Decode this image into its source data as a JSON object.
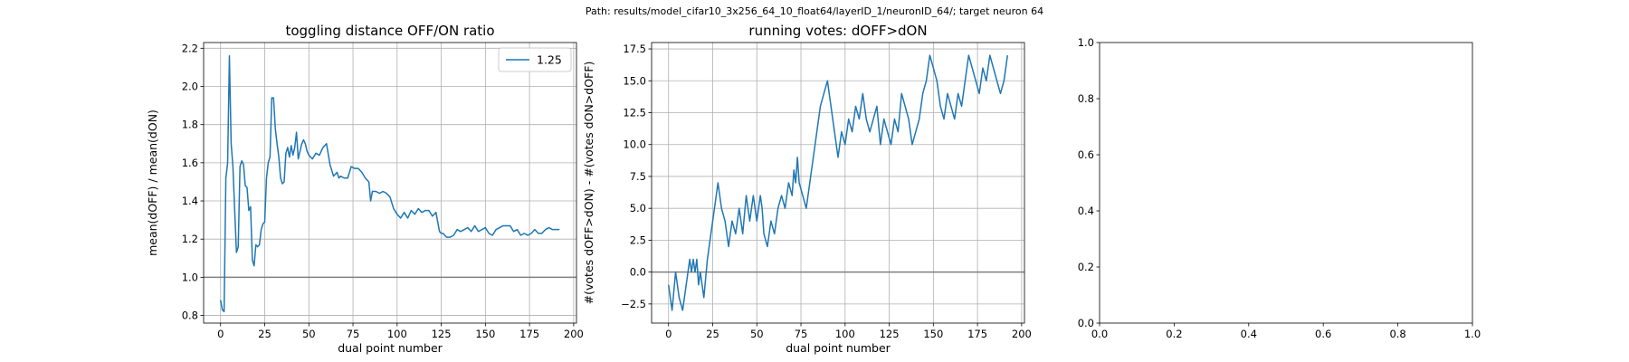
{
  "figure": {
    "suptitle": "Path: results/model_cifar10_3x256_64_10_float64/layerID_1/neuronID_64/; target neuron 64"
  },
  "colors": {
    "line": "#1f77b4",
    "hline": "#7f7f7f",
    "grid": "#b0b0b0"
  },
  "chart_data": [
    {
      "type": "line",
      "title": "toggling distance OFF/ON ratio",
      "xlabel": "dual point number",
      "ylabel": "mean(dOFF) / mean(dON)",
      "xlim": [
        -9.6,
        201.6
      ],
      "ylim": [
        0.76,
        2.23
      ],
      "xticks": [
        0,
        25,
        50,
        75,
        100,
        125,
        150,
        175,
        200
      ],
      "xtick_labels": [
        "0",
        "25",
        "50",
        "75",
        "100",
        "125",
        "150",
        "175",
        "200"
      ],
      "yticks": [
        0.8,
        1.0,
        1.2,
        1.4,
        1.6,
        1.8,
        2.0,
        2.2
      ],
      "ytick_labels": [
        "0.8",
        "1.0",
        "1.2",
        "1.4",
        "1.6",
        "1.8",
        "2.0",
        "2.2"
      ],
      "grid": true,
      "legend": {
        "placement": "upper-right",
        "entries": [
          "1.25"
        ]
      },
      "hline": 1.0,
      "series": [
        {
          "name": "1.25",
          "x": [
            0,
            1,
            2,
            3,
            4,
            5,
            6,
            7,
            8,
            9,
            10,
            11,
            12,
            13,
            14,
            15,
            16,
            17,
            18,
            19,
            20,
            21,
            22,
            23,
            24,
            25,
            26,
            27,
            28,
            29,
            30,
            31,
            32,
            33,
            34,
            35,
            36,
            37,
            38,
            39,
            40,
            41,
            42,
            43,
            44,
            45,
            46,
            47,
            48,
            49,
            50,
            52,
            54,
            56,
            58,
            60,
            62,
            64,
            66,
            67,
            68,
            70,
            72,
            74,
            76,
            78,
            80,
            82,
            84,
            85,
            86,
            88,
            90,
            92,
            94,
            96,
            98,
            100,
            102,
            104,
            106,
            108,
            110,
            112,
            114,
            116,
            118,
            120,
            122,
            124,
            125,
            126,
            128,
            130,
            132,
            134,
            136,
            138,
            140,
            142,
            144,
            146,
            148,
            150,
            152,
            154,
            156,
            158,
            160,
            162,
            164,
            166,
            168,
            170,
            172,
            174,
            176,
            178,
            180,
            182,
            184,
            186,
            188,
            190,
            192
          ],
          "y": [
            0.88,
            0.83,
            0.82,
            1.52,
            1.6,
            2.16,
            1.7,
            1.58,
            1.35,
            1.13,
            1.16,
            1.58,
            1.61,
            1.59,
            1.48,
            1.47,
            1.35,
            1.37,
            1.09,
            1.06,
            1.17,
            1.16,
            1.17,
            1.25,
            1.28,
            1.29,
            1.52,
            1.6,
            1.63,
            1.94,
            1.94,
            1.78,
            1.7,
            1.63,
            1.52,
            1.49,
            1.5,
            1.65,
            1.68,
            1.63,
            1.69,
            1.64,
            1.68,
            1.76,
            1.62,
            1.66,
            1.7,
            1.72,
            1.7,
            1.66,
            1.64,
            1.62,
            1.65,
            1.64,
            1.68,
            1.7,
            1.59,
            1.53,
            1.55,
            1.52,
            1.53,
            1.52,
            1.52,
            1.58,
            1.57,
            1.57,
            1.55,
            1.52,
            1.5,
            1.4,
            1.45,
            1.45,
            1.44,
            1.45,
            1.44,
            1.42,
            1.36,
            1.33,
            1.31,
            1.34,
            1.31,
            1.35,
            1.33,
            1.36,
            1.34,
            1.35,
            1.35,
            1.32,
            1.34,
            1.24,
            1.23,
            1.23,
            1.21,
            1.21,
            1.22,
            1.25,
            1.24,
            1.25,
            1.26,
            1.24,
            1.27,
            1.24,
            1.25,
            1.26,
            1.23,
            1.22,
            1.25,
            1.26,
            1.27,
            1.27,
            1.27,
            1.24,
            1.25,
            1.22,
            1.23,
            1.22,
            1.23,
            1.25,
            1.23,
            1.23,
            1.25,
            1.26,
            1.25,
            1.25,
            1.25
          ]
        }
      ]
    },
    {
      "type": "line",
      "title": "running votes: dOFF>dON",
      "xlabel": "dual point number",
      "ylabel": "#(votes dOFF>dON) - #(votes dON>dOFF)",
      "xlim": [
        -9.6,
        201.6
      ],
      "ylim": [
        -4.0,
        18.0
      ],
      "xticks": [
        0,
        25,
        50,
        75,
        100,
        125,
        150,
        175,
        200
      ],
      "xtick_labels": [
        "0",
        "25",
        "50",
        "75",
        "100",
        "125",
        "150",
        "175",
        "200"
      ],
      "yticks": [
        -2.5,
        0.0,
        2.5,
        5.0,
        7.5,
        10.0,
        12.5,
        15.0,
        17.5
      ],
      "ytick_labels": [
        "−2.5",
        "0.0",
        "2.5",
        "5.0",
        "7.5",
        "10.0",
        "12.5",
        "15.0",
        "17.5"
      ],
      "grid": true,
      "hline": 0.0,
      "series": [
        {
          "x": [
            0,
            2,
            4,
            6,
            8,
            10,
            12,
            13,
            14,
            15,
            16,
            17,
            18,
            20,
            22,
            24,
            26,
            28,
            30,
            32,
            34,
            36,
            38,
            40,
            42,
            44,
            46,
            48,
            50,
            51,
            52,
            53,
            54,
            56,
            58,
            60,
            62,
            64,
            66,
            68,
            70,
            71,
            72,
            73,
            74,
            76,
            78,
            80,
            82,
            84,
            86,
            88,
            90,
            92,
            94,
            96,
            98,
            100,
            102,
            104,
            106,
            108,
            110,
            112,
            114,
            116,
            118,
            120,
            122,
            124,
            126,
            128,
            130,
            132,
            134,
            136,
            138,
            140,
            142,
            144,
            146,
            148,
            150,
            152,
            154,
            156,
            158,
            160,
            162,
            164,
            166,
            168,
            170,
            172,
            174,
            176,
            178,
            180,
            182,
            184,
            186,
            188,
            190,
            192
          ],
          "y": [
            -1,
            -3,
            0,
            -2,
            -3,
            -1,
            1,
            0,
            1,
            0,
            1,
            -1,
            0,
            -2,
            1,
            3,
            5,
            7,
            5,
            4,
            2,
            4,
            3,
            5,
            3,
            6,
            4,
            6,
            4,
            5,
            6,
            5,
            3,
            2,
            4,
            3,
            5,
            6,
            5,
            7,
            6,
            8,
            7,
            9,
            7,
            6,
            5,
            7,
            9,
            11,
            13,
            14,
            15,
            13,
            11,
            9,
            11,
            10,
            12,
            11,
            13,
            12,
            14,
            12,
            11,
            12,
            13,
            10,
            12,
            11,
            10,
            12,
            11,
            14,
            13,
            12,
            10,
            11,
            12,
            14,
            15,
            17,
            16,
            15,
            13,
            12,
            14,
            13,
            12,
            14,
            13,
            15,
            17,
            16,
            15,
            14,
            16,
            15,
            17,
            16,
            15,
            14,
            15,
            17
          ]
        }
      ]
    },
    {
      "type": "line",
      "title": "",
      "xlim": [
        0.0,
        1.0
      ],
      "ylim": [
        0.0,
        1.0
      ],
      "xticks": [
        0.0,
        0.2,
        0.4,
        0.6,
        0.8,
        1.0
      ],
      "xtick_labels": [
        "0.0",
        "0.2",
        "0.4",
        "0.6",
        "0.8",
        "1.0"
      ],
      "yticks": [
        0.0,
        0.2,
        0.4,
        0.6,
        0.8,
        1.0
      ],
      "ytick_labels": [
        "0.0",
        "0.2",
        "0.4",
        "0.6",
        "0.8",
        "1.0"
      ],
      "grid": false,
      "series": []
    }
  ]
}
